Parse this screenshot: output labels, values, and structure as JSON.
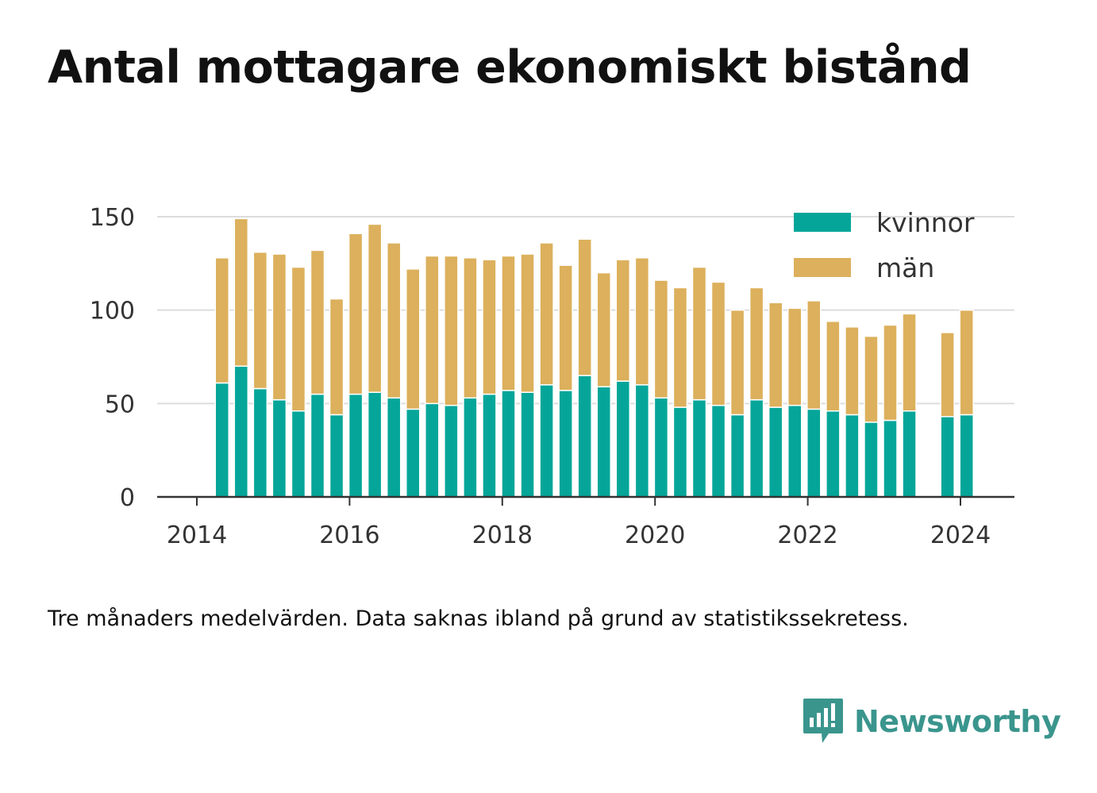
{
  "title": "Antal mottagare ekonomiskt bistånd",
  "note": "Tre månaders medelvärden. Data saknas ibland på grund av statistikssekretess.",
  "brand": {
    "name": "Newsworthy",
    "icon": "newsworthy-logo-icon",
    "color": "#3a958d"
  },
  "chart_data": {
    "type": "bar",
    "stacked": true,
    "title": "",
    "xlabel": "",
    "ylabel": "",
    "ylim": [
      0,
      150
    ],
    "yticks": [
      0,
      50,
      100,
      150
    ],
    "xticks": [
      "2014",
      "2016",
      "2018",
      "2020",
      "2022",
      "2024"
    ],
    "xlim": [
      2014.0,
      2024.7
    ],
    "grid": true,
    "legend_position": "top-right",
    "x": [
      2014.33,
      2014.58,
      2014.83,
      2015.08,
      2015.33,
      2015.58,
      2015.83,
      2016.08,
      2016.33,
      2016.58,
      2016.83,
      2017.08,
      2017.33,
      2017.58,
      2017.83,
      2018.08,
      2018.33,
      2018.58,
      2018.83,
      2019.08,
      2019.33,
      2019.58,
      2019.83,
      2020.08,
      2020.33,
      2020.58,
      2020.83,
      2021.08,
      2021.33,
      2021.58,
      2021.83,
      2022.08,
      2022.33,
      2022.58,
      2022.83,
      2023.08,
      2023.33,
      2023.83,
      2024.08
    ],
    "series": [
      {
        "name": "kvinnor",
        "color": "#05a699",
        "values": [
          61,
          70,
          58,
          52,
          46,
          55,
          44,
          55,
          56,
          53,
          47,
          50,
          49,
          53,
          55,
          57,
          56,
          60,
          57,
          65,
          59,
          62,
          60,
          53,
          48,
          52,
          49,
          44,
          52,
          48,
          49,
          47,
          46,
          44,
          40,
          41,
          46,
          43,
          44
        ]
      },
      {
        "name": "män",
        "color": "#dcb05c",
        "values": [
          67,
          79,
          73,
          78,
          77,
          77,
          62,
          86,
          90,
          83,
          75,
          79,
          80,
          75,
          72,
          72,
          74,
          76,
          67,
          73,
          61,
          65,
          68,
          63,
          64,
          71,
          66,
          56,
          60,
          56,
          52,
          58,
          48,
          47,
          46,
          51,
          52,
          45,
          56
        ]
      }
    ]
  }
}
